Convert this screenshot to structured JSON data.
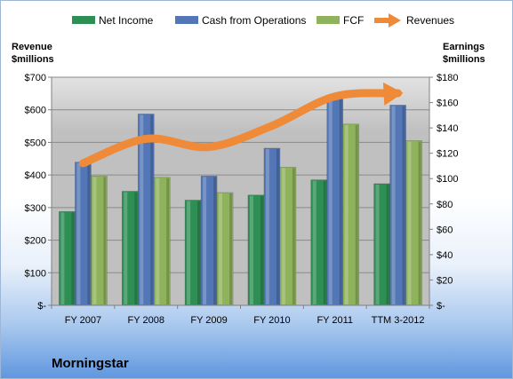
{
  "chart_data": {
    "type": "bar",
    "categories": [
      "FY 2007",
      "FY 2008",
      "FY 2009",
      "FY 2010",
      "FY 2011",
      "TTM 3-2012"
    ],
    "series": [
      {
        "name": "Net Income",
        "axis": "earnings",
        "color": "#2e8f55",
        "values": [
          74,
          90,
          83,
          87,
          99,
          96
        ]
      },
      {
        "name": "Cash from Operations",
        "axis": "earnings",
        "color": "#5276b6",
        "values": [
          113,
          151,
          102,
          124,
          166,
          158
        ]
      },
      {
        "name": "FCF",
        "axis": "earnings",
        "color": "#8fb35c",
        "values": [
          102,
          101,
          89,
          109,
          143,
          130
        ]
      },
      {
        "name": "Revenues",
        "axis": "revenue",
        "color": "#ee8a38",
        "render": "arrow",
        "values": [
          425,
          500,
          475,
          540,
          630,
          640
        ]
      }
    ],
    "left_axis": {
      "title_line1": "Revenue",
      "title_line2": "$millions",
      "range": [
        0,
        700
      ],
      "ticks": [
        0,
        100,
        200,
        300,
        400,
        500,
        600,
        700
      ],
      "tick_labels": [
        "$-",
        "$100",
        "$200",
        "$300",
        "$400",
        "$500",
        "$600",
        "$700"
      ]
    },
    "right_axis": {
      "title_line1": "Earnings",
      "title_line2": "$millions",
      "range": [
        0,
        180
      ],
      "ticks": [
        0,
        20,
        40,
        60,
        80,
        100,
        120,
        140,
        160,
        180
      ],
      "tick_labels": [
        "$-",
        "$20",
        "$40",
        "$60",
        "$80",
        "$100",
        "$120",
        "$140",
        "$160",
        "$180"
      ]
    },
    "legend": {
      "position": "top",
      "entries": [
        "Net Income",
        "Cash from Operations",
        "FCF",
        "Revenues"
      ]
    },
    "grid": true,
    "plot_background": "#c0c0c0",
    "company": "Morningstar"
  }
}
